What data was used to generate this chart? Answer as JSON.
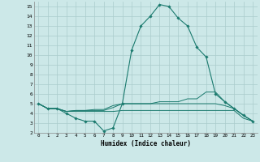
{
  "xlabel": "Humidex (Indice chaleur)",
  "xlim": [
    -0.5,
    23.5
  ],
  "ylim": [
    2,
    15.5
  ],
  "yticks": [
    2,
    3,
    4,
    5,
    6,
    7,
    8,
    9,
    10,
    11,
    12,
    13,
    14,
    15
  ],
  "xticks": [
    0,
    1,
    2,
    3,
    4,
    5,
    6,
    7,
    8,
    9,
    10,
    11,
    12,
    13,
    14,
    15,
    16,
    17,
    18,
    19,
    20,
    21,
    22,
    23
  ],
  "bg_color": "#cce8e8",
  "grid_color": "#aacccc",
  "line_color": "#1a7a6e",
  "line1_x": [
    0,
    1,
    2,
    3,
    4,
    5,
    6,
    7,
    8,
    9,
    10,
    11,
    12,
    13,
    14,
    15,
    16,
    17,
    18,
    19,
    20,
    21,
    22,
    23
  ],
  "line1_y": [
    5.0,
    4.5,
    4.5,
    4.0,
    3.5,
    3.2,
    3.2,
    2.2,
    2.5,
    5.0,
    10.5,
    13.0,
    14.0,
    15.2,
    15.0,
    13.8,
    13.0,
    10.8,
    9.8,
    6.0,
    5.2,
    4.5,
    3.8,
    3.2
  ],
  "line2_x": [
    0,
    1,
    2,
    3,
    4,
    5,
    6,
    7,
    8,
    9,
    10,
    11,
    12,
    13,
    14,
    15,
    16,
    17,
    18,
    19,
    20,
    21,
    22,
    23
  ],
  "line2_y": [
    5.0,
    4.5,
    4.5,
    4.2,
    4.3,
    4.3,
    4.4,
    4.4,
    4.8,
    5.0,
    5.0,
    5.0,
    5.0,
    5.2,
    5.2,
    5.2,
    5.5,
    5.5,
    6.2,
    6.2,
    5.2,
    4.5,
    3.8,
    3.2
  ],
  "line3_x": [
    0,
    1,
    2,
    3,
    4,
    5,
    6,
    7,
    8,
    9,
    10,
    11,
    12,
    13,
    14,
    15,
    16,
    17,
    18,
    19,
    20,
    21,
    22,
    23
  ],
  "line3_y": [
    5.0,
    4.5,
    4.5,
    4.2,
    4.3,
    4.3,
    4.3,
    4.3,
    4.6,
    5.0,
    5.0,
    5.0,
    5.0,
    5.0,
    5.0,
    5.0,
    5.0,
    5.0,
    5.0,
    5.0,
    4.8,
    4.5,
    3.8,
    3.2
  ],
  "line4_x": [
    0,
    1,
    2,
    3,
    4,
    5,
    6,
    7,
    8,
    9,
    10,
    11,
    12,
    13,
    14,
    15,
    16,
    17,
    18,
    19,
    20,
    21,
    22,
    23
  ],
  "line4_y": [
    5.0,
    4.5,
    4.5,
    4.2,
    4.2,
    4.2,
    4.2,
    4.2,
    4.2,
    4.3,
    4.3,
    4.3,
    4.3,
    4.3,
    4.3,
    4.3,
    4.3,
    4.3,
    4.3,
    4.3,
    4.3,
    4.3,
    3.5,
    3.2
  ]
}
